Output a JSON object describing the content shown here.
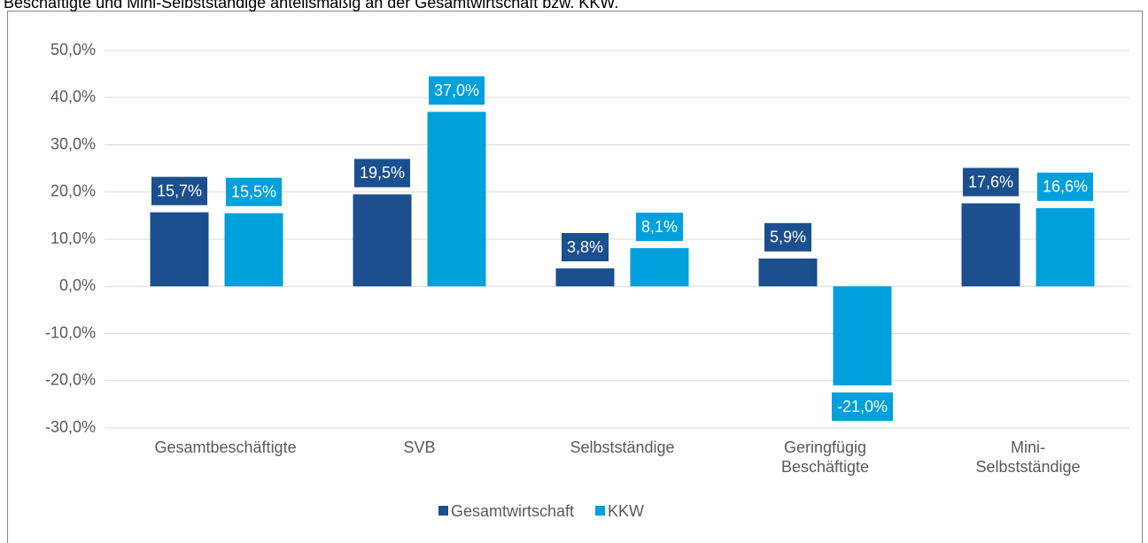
{
  "chart_data": {
    "type": "bar",
    "title": "Beschäftigte und Mini-Selbstständige anteilsmäßig an der Gesamtwirtschaft bzw. KKW.",
    "categories": [
      "Gesamtbeschäftigte",
      "SVB",
      "Selbstständige",
      "Geringfügig Beschäftigte",
      "Mini-Selbstständige"
    ],
    "series": [
      {
        "name": "Gesamtwirtschaft",
        "color": "#1b4f8e",
        "values": [
          15.7,
          19.5,
          3.8,
          5.9,
          17.6
        ],
        "value_labels": [
          "15,7%",
          "19,5%",
          "3,8%",
          "5,9%",
          "17,6%"
        ]
      },
      {
        "name": "KKW",
        "color": "#00a0dc",
        "values": [
          15.5,
          37.0,
          8.1,
          -21.0,
          16.6
        ],
        "value_labels": [
          "15,5%",
          "37,0%",
          "8,1%",
          "-21,0%",
          "16,6%"
        ]
      }
    ],
    "ylim": [
      -30,
      50
    ],
    "yticks": [
      {
        "value": -30,
        "label": "-30,0%"
      },
      {
        "value": -20,
        "label": "-20,0%"
      },
      {
        "value": -10,
        "label": "-10,0%"
      },
      {
        "value": 0,
        "label": "0,0%"
      },
      {
        "value": 10,
        "label": "10,0%"
      },
      {
        "value": 20,
        "label": "20,0%"
      },
      {
        "value": 30,
        "label": "30,0%"
      },
      {
        "value": 40,
        "label": "40,0%"
      },
      {
        "value": 50,
        "label": "50,0%"
      }
    ],
    "grid": true,
    "legend": "bottom"
  }
}
